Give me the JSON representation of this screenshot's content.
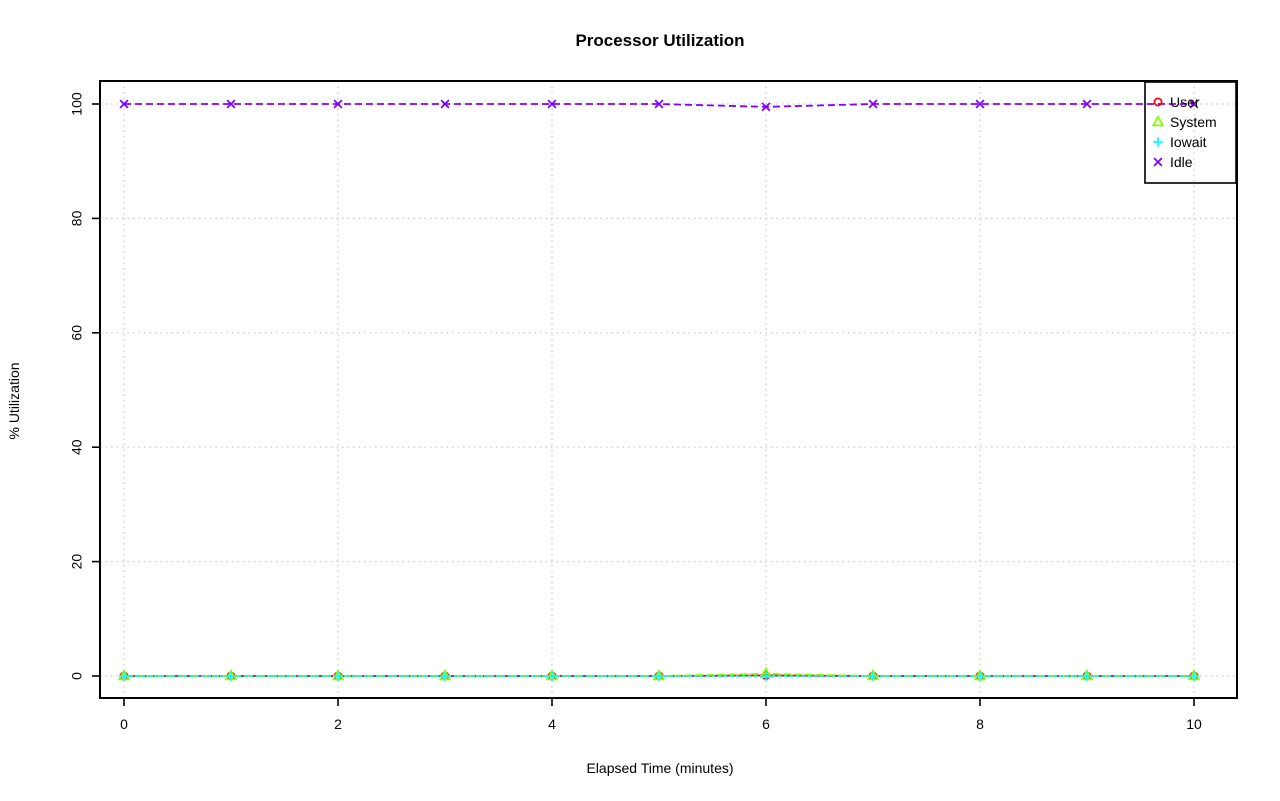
{
  "chart_data": {
    "type": "line",
    "title": "Processor Utilization",
    "xlabel": "Elapsed Time (minutes)",
    "ylabel": "% Utilization",
    "xlim": [
      0,
      10
    ],
    "ylim": [
      0,
      100
    ],
    "x_ticks": [
      "0",
      "2",
      "4",
      "6",
      "8",
      "10"
    ],
    "x_tick_values": [
      0,
      2,
      4,
      6,
      8,
      10
    ],
    "y_ticks": [
      "0",
      "20",
      "40",
      "60",
      "80",
      "100"
    ],
    "y_tick_values": [
      0,
      20,
      40,
      60,
      80,
      100
    ],
    "grid": {
      "show": true,
      "style": "dotted",
      "color": "#c8c8c8"
    },
    "x": [
      0,
      1,
      2,
      3,
      4,
      5,
      6,
      7,
      8,
      9,
      10
    ],
    "series": [
      {
        "name": "User",
        "color": "#ff0000",
        "marker": "circle",
        "line": "solid",
        "values": [
          0,
          0,
          0,
          0,
          0,
          0,
          0.1,
          0,
          0,
          0,
          0
        ]
      },
      {
        "name": "System",
        "color": "#80ff00",
        "marker": "triangle",
        "line": "dashed",
        "values": [
          0,
          0,
          0,
          0,
          0,
          0,
          0.4,
          0,
          0,
          0,
          0
        ]
      },
      {
        "name": "Iowait",
        "color": "#00ffff",
        "marker": "plus",
        "line": "dotted",
        "values": [
          0,
          0,
          0,
          0,
          0,
          0,
          0,
          0,
          0,
          0,
          0
        ]
      },
      {
        "name": "Idle",
        "color": "#8000ff",
        "marker": "x",
        "line": "dashed",
        "values": [
          100,
          100,
          100,
          100,
          100,
          100,
          99.5,
          100,
          100,
          100,
          100
        ]
      }
    ],
    "legend": {
      "position": "top-right",
      "entries": [
        "User",
        "System",
        "Iowait",
        "Idle"
      ]
    }
  },
  "frame": {
    "background": "#ffffff",
    "axis_color": "#000000"
  }
}
